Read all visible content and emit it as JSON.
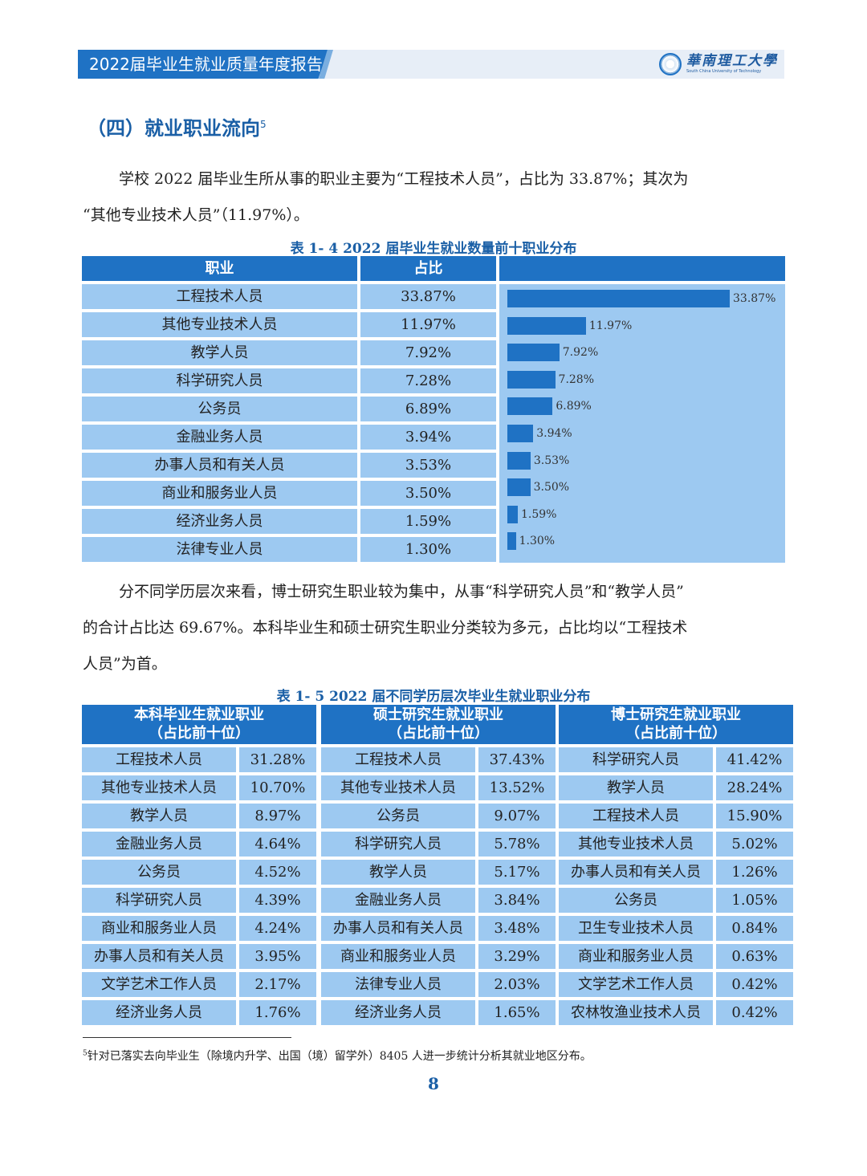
{
  "header": {
    "title": "2022届毕业生就业质量年度报告",
    "logo_cn": "華南理工大學",
    "logo_en": "South China University of Technology"
  },
  "section": {
    "title": "（四）就业职业流向",
    "footnote_ref": "5"
  },
  "paragraph1": {
    "line1": "学校 2022 届毕业生所从事的职业主要为“工程技术人员”，占比为 33.87%；其次为",
    "line2": "“其他专业技术人员”（11.97%）。"
  },
  "table14": {
    "caption": "表 1- 4  2022 届毕业生就业数量前十职业分布",
    "col_occupation": "职业",
    "col_share": "占比",
    "rows": [
      {
        "name": "工程技术人员",
        "pct": "33.87%"
      },
      {
        "name": "其他专业技术人员",
        "pct": "11.97%"
      },
      {
        "name": "教学人员",
        "pct": "7.92%"
      },
      {
        "name": "科学研究人员",
        "pct": "7.28%"
      },
      {
        "name": "公务员",
        "pct": "6.89%"
      },
      {
        "name": "金融业务人员",
        "pct": "3.94%"
      },
      {
        "name": "办事人员和有关人员",
        "pct": "3.53%"
      },
      {
        "name": "商业和服务业人员",
        "pct": "3.50%"
      },
      {
        "name": "经济业务人员",
        "pct": "1.59%"
      },
      {
        "name": "法律专业人员",
        "pct": "1.30%"
      }
    ]
  },
  "chart_data": {
    "type": "bar",
    "orientation": "horizontal",
    "title": "",
    "categories": [
      "工程技术人员",
      "其他专业技术人员",
      "教学人员",
      "科学研究人员",
      "公务员",
      "金融业务人员",
      "办事人员和有关人员",
      "商业和服务业人员",
      "经济业务人员",
      "法律专业人员"
    ],
    "values": [
      33.87,
      11.97,
      7.92,
      7.28,
      6.89,
      3.94,
      3.53,
      3.5,
      1.59,
      1.3
    ],
    "value_labels": [
      "33.87%",
      "11.97%",
      "7.92%",
      "7.28%",
      "6.89%",
      "3.94%",
      "3.53%",
      "3.50%",
      "1.59%",
      "1.30%"
    ],
    "xlim": [
      0,
      33.87
    ],
    "xlabel": "",
    "ylabel": "",
    "color": "#1f72c4"
  },
  "paragraph2": {
    "line1": "分不同学历层次来看，博士研究生职业较为集中，从事“科学研究人员”和“教学人员”",
    "line2": "的合计占比达 69.67%。本科毕业生和硕士研究生职业分类较为多元，占比均以“工程技术",
    "line3": "人员”为首。"
  },
  "table15": {
    "caption": "表 1- 5  2022 届不同学历层次毕业生就业职业分布",
    "groups": [
      {
        "title": "本科毕业生就业职业",
        "subtitle": "（占比前十位）",
        "rows": [
          {
            "name": "工程技术人员",
            "pct": "31.28%"
          },
          {
            "name": "其他专业技术人员",
            "pct": "10.70%"
          },
          {
            "name": "教学人员",
            "pct": "8.97%"
          },
          {
            "name": "金融业务人员",
            "pct": "4.64%"
          },
          {
            "name": "公务员",
            "pct": "4.52%"
          },
          {
            "name": "科学研究人员",
            "pct": "4.39%"
          },
          {
            "name": "商业和服务业人员",
            "pct": "4.24%"
          },
          {
            "name": "办事人员和有关人员",
            "pct": "3.95%"
          },
          {
            "name": "文学艺术工作人员",
            "pct": "2.17%"
          },
          {
            "name": "经济业务人员",
            "pct": "1.76%"
          }
        ]
      },
      {
        "title": "硕士研究生就业职业",
        "subtitle": "（占比前十位）",
        "rows": [
          {
            "name": "工程技术人员",
            "pct": "37.43%"
          },
          {
            "name": "其他专业技术人员",
            "pct": "13.52%"
          },
          {
            "name": "公务员",
            "pct": "9.07%"
          },
          {
            "name": "科学研究人员",
            "pct": "5.78%"
          },
          {
            "name": "教学人员",
            "pct": "5.17%"
          },
          {
            "name": "金融业务人员",
            "pct": "3.84%"
          },
          {
            "name": "办事人员和有关人员",
            "pct": "3.48%"
          },
          {
            "name": "商业和服务业人员",
            "pct": "3.29%"
          },
          {
            "name": "法律专业人员",
            "pct": "2.03%"
          },
          {
            "name": "经济业务人员",
            "pct": "1.65%"
          }
        ]
      },
      {
        "title": "博士研究生就业职业",
        "subtitle": "（占比前十位）",
        "rows": [
          {
            "name": "科学研究人员",
            "pct": "41.42%"
          },
          {
            "name": "教学人员",
            "pct": "28.24%"
          },
          {
            "name": "工程技术人员",
            "pct": "15.90%"
          },
          {
            "name": "其他专业技术人员",
            "pct": "5.02%"
          },
          {
            "name": "办事人员和有关人员",
            "pct": "1.26%"
          },
          {
            "name": "公务员",
            "pct": "1.05%"
          },
          {
            "name": "卫生专业技术人员",
            "pct": "0.84%"
          },
          {
            "name": "商业和服务业人员",
            "pct": "0.63%"
          },
          {
            "name": "文学艺术工作人员",
            "pct": "0.42%"
          },
          {
            "name": "农林牧渔业技术人员",
            "pct": "0.42%"
          }
        ]
      }
    ]
  },
  "footnote": {
    "marker": "5",
    "text": "针对已落实去向毕业生（除境内升学、出国（境）留学外）8405 人进一步统计分析其就业地区分布。"
  },
  "page_number": "8"
}
